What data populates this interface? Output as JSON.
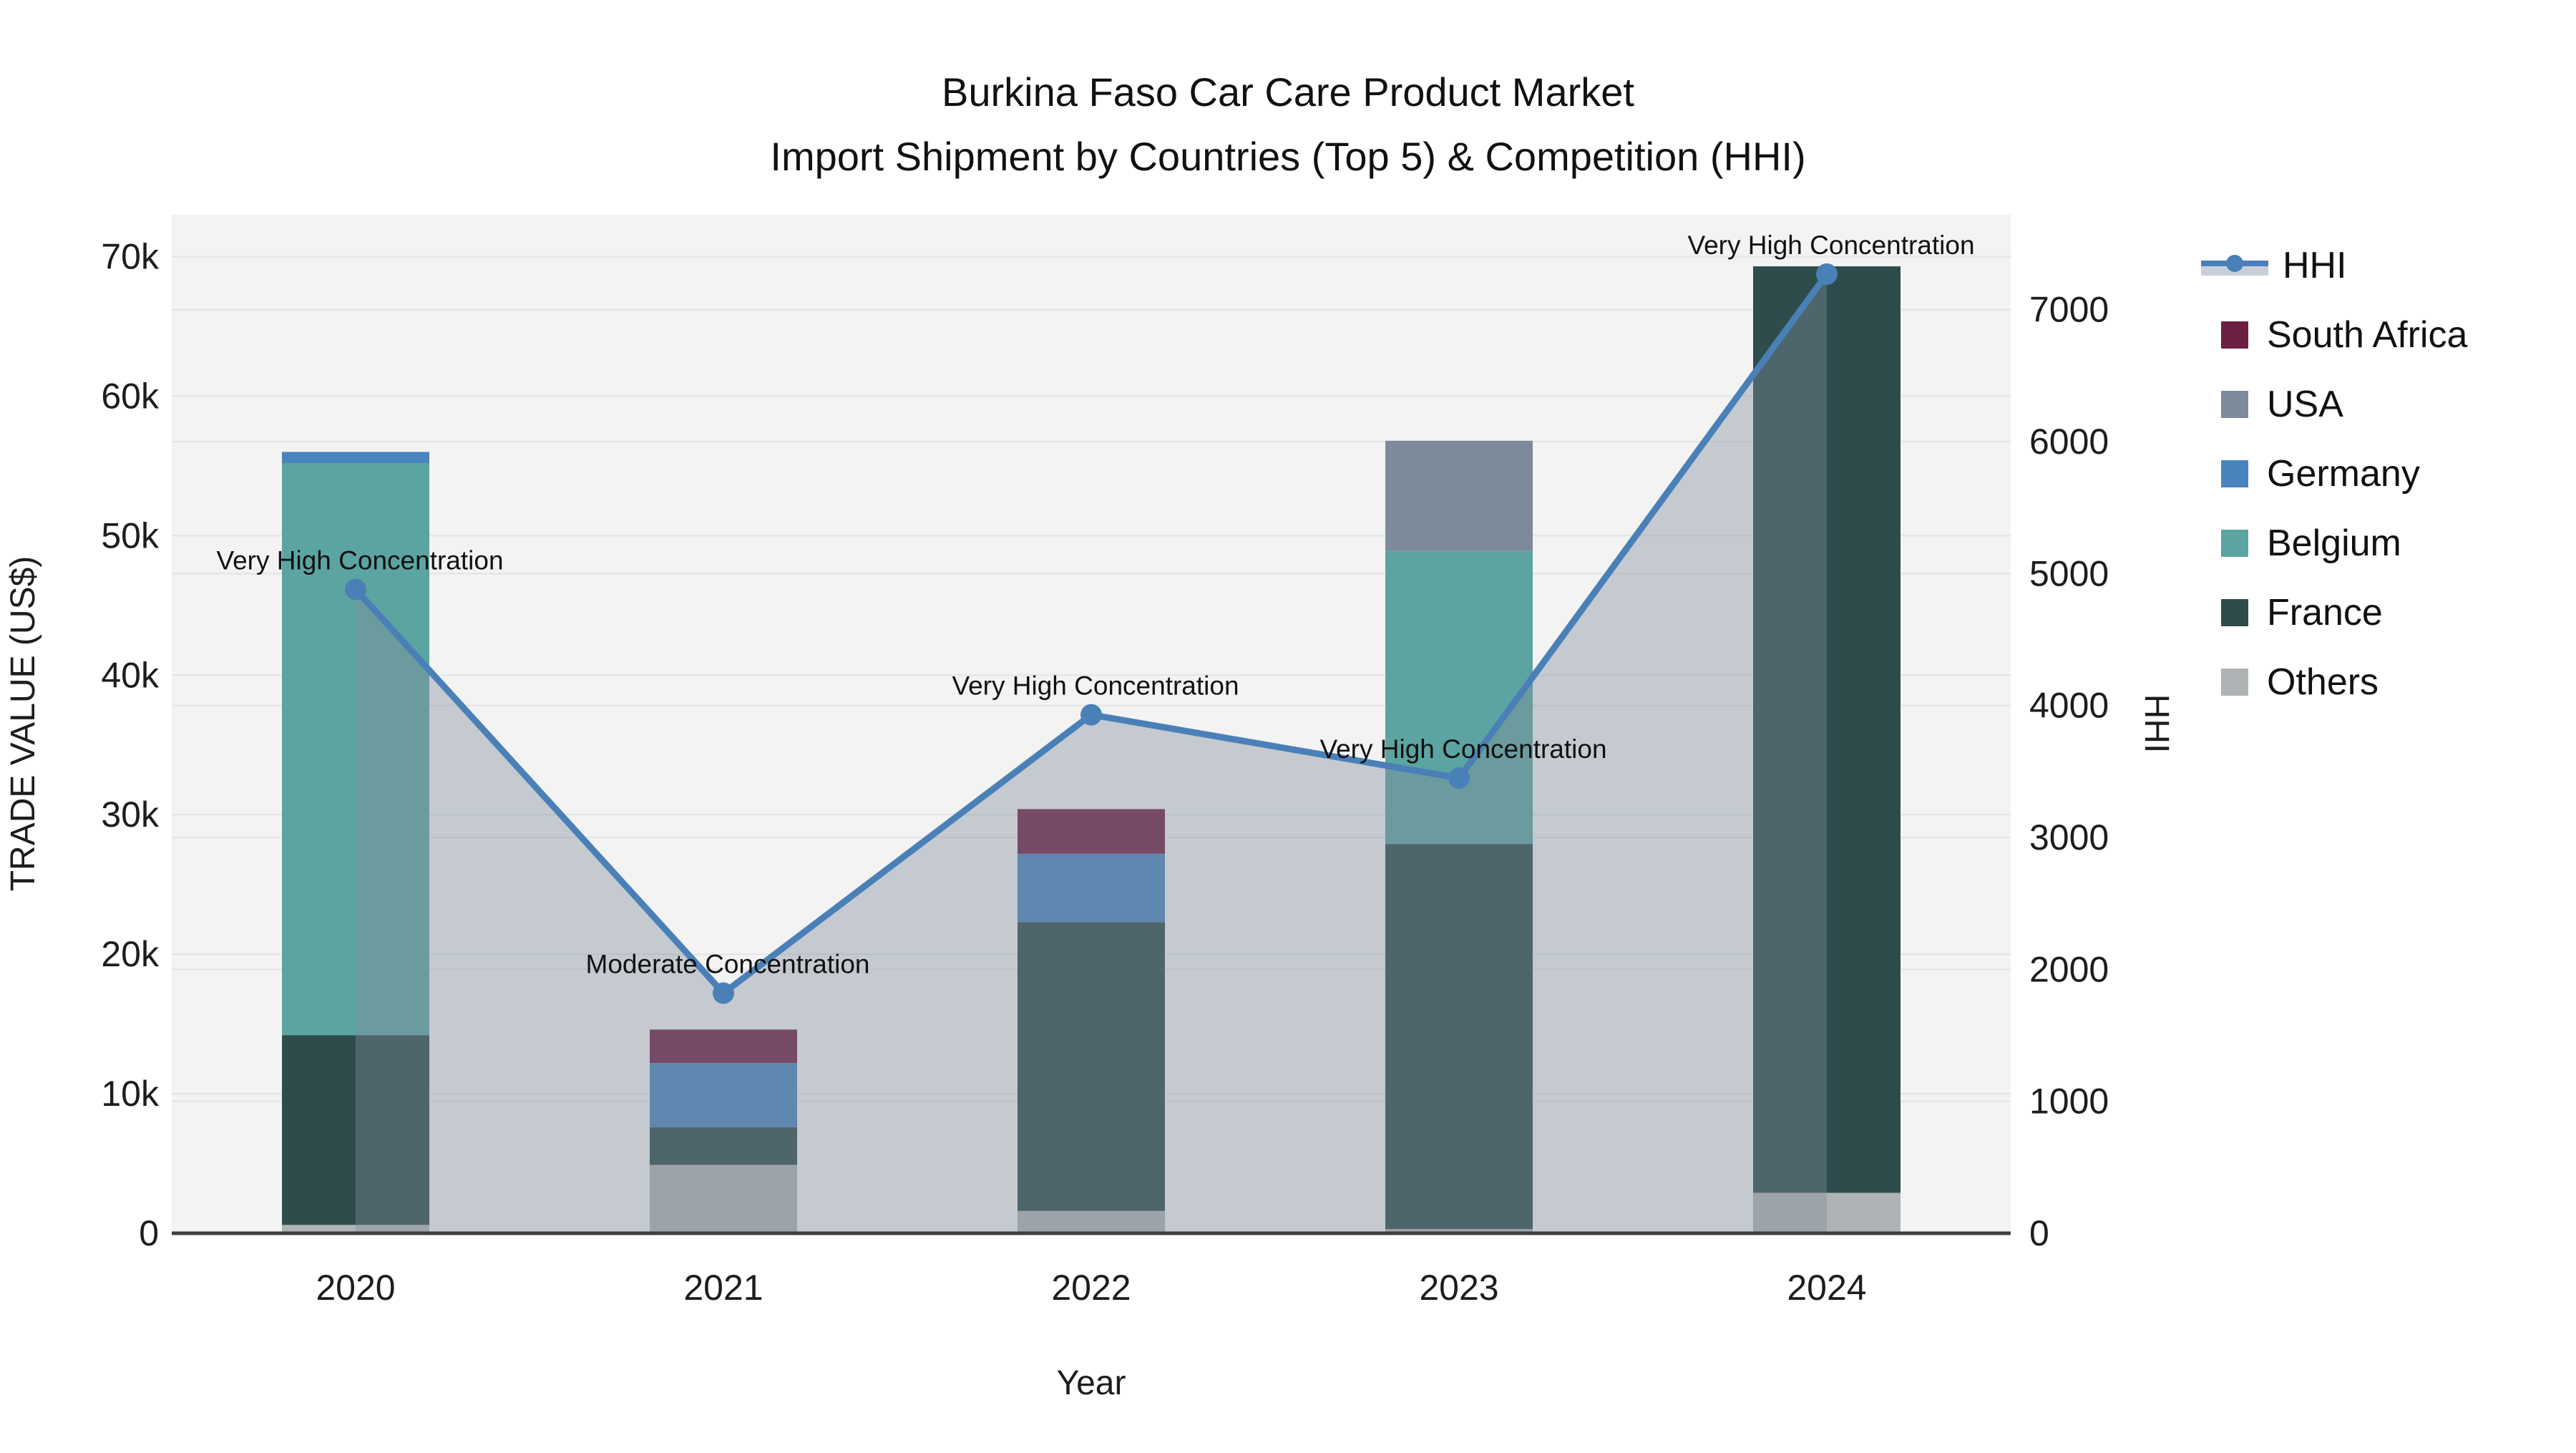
{
  "title": {
    "line1": "Burkina Faso Car Care Product Market",
    "line2": "Import Shipment by Countries (Top 5) & Competition (HHI)"
  },
  "colors": {
    "plot_background": "#f2f3f2",
    "gridline": "#e2e4e6",
    "axis_line": "#3c4043",
    "hhi_line": "#4A80B8",
    "hhi_area_fill": "rgba(130,140,158,0.40)",
    "hhi_legend_band": "#c9cfda",
    "text": "#1a1a1a"
  },
  "chart_data": {
    "type": "bar",
    "subtype": "stacked-bars-with-line",
    "categories": [
      "2020",
      "2021",
      "2022",
      "2023",
      "2024"
    ],
    "bar_series": [
      {
        "name": "Others",
        "color": "#AFB3B5",
        "values": [
          600,
          4900,
          1600,
          300,
          2900
        ]
      },
      {
        "name": "France",
        "color": "#2E4C4B",
        "values": [
          13600,
          2700,
          20700,
          27600,
          66400
        ]
      },
      {
        "name": "Belgium",
        "color": "#5CA4A1",
        "values": [
          41000,
          0,
          0,
          21000,
          0
        ]
      },
      {
        "name": "Germany",
        "color": "#4A84BC",
        "values": [
          800,
          4600,
          4900,
          0,
          0
        ]
      },
      {
        "name": "USA",
        "color": "#7D8A9C",
        "values": [
          0,
          0,
          0,
          7900,
          0
        ]
      },
      {
        "name": "South Africa",
        "color": "#6E1E42",
        "values": [
          0,
          2400,
          3200,
          0,
          0
        ]
      }
    ],
    "bar_totals": [
      56000,
      14600,
      30400,
      56800,
      69300
    ],
    "line_series": {
      "name": "HHI",
      "values": [
        4880,
        1820,
        3930,
        3450,
        7270
      ]
    },
    "annotations": [
      "Very High Concentration",
      "Moderate Concentration",
      "Very High Concentration",
      "Very High Concentration",
      "Very High Concentration"
    ],
    "title": "Burkina Faso Car Care Product Market — Import Shipment by Countries (Top 5) & Competition (HHI)",
    "xlabel": "Year",
    "ylabel_left": "TRADE VALUE (US$)",
    "ylabel_right": "HHI",
    "y_left_axis": {
      "min": 0,
      "max": 73000,
      "tick_values": [
        0,
        10000,
        20000,
        30000,
        40000,
        50000,
        60000,
        70000
      ],
      "tick_labels": [
        "0",
        "10k",
        "20k",
        "30k",
        "40k",
        "50k",
        "60k",
        "70k"
      ]
    },
    "y_right_axis": {
      "min": 0,
      "max": 7720,
      "tick_values": [
        0,
        1000,
        2000,
        3000,
        4000,
        5000,
        6000,
        7000
      ],
      "tick_labels": [
        "0",
        "1000",
        "2000",
        "3000",
        "4000",
        "5000",
        "6000",
        "7000"
      ]
    },
    "grid": true,
    "legend_position": "top-right",
    "legend_order": [
      "HHI",
      "South Africa",
      "USA",
      "Germany",
      "Belgium",
      "France",
      "Others"
    ]
  }
}
